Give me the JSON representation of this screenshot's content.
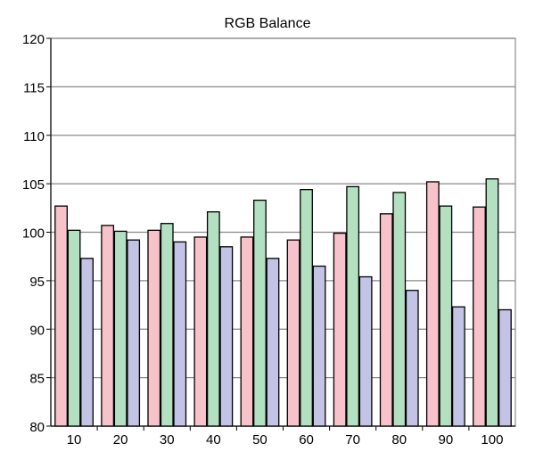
{
  "chart_data": {
    "type": "bar",
    "title": "RGB Balance",
    "xlabel": "",
    "ylabel": "",
    "categories": [
      "10",
      "20",
      "30",
      "40",
      "50",
      "60",
      "70",
      "80",
      "90",
      "100"
    ],
    "series": [
      {
        "values": [
          102.7,
          100.7,
          100.2,
          99.5,
          99.5,
          99.2,
          99.9,
          101.9,
          105.2,
          102.6
        ],
        "color": "#f7c2c9"
      },
      {
        "values": [
          100.2,
          100.1,
          100.9,
          102.1,
          103.3,
          104.4,
          104.7,
          104.1,
          102.7,
          105.5
        ],
        "color": "#b4e0c2"
      },
      {
        "values": [
          97.3,
          99.2,
          99.0,
          98.5,
          97.3,
          96.5,
          95.4,
          94.0,
          92.3,
          92.0
        ],
        "color": "#c3c3e6"
      }
    ],
    "ylim": [
      80,
      120
    ],
    "yticks": [
      "80",
      "85",
      "90",
      "95",
      "100",
      "105",
      "110",
      "115",
      "120"
    ],
    "grid": true,
    "legend": "none"
  }
}
